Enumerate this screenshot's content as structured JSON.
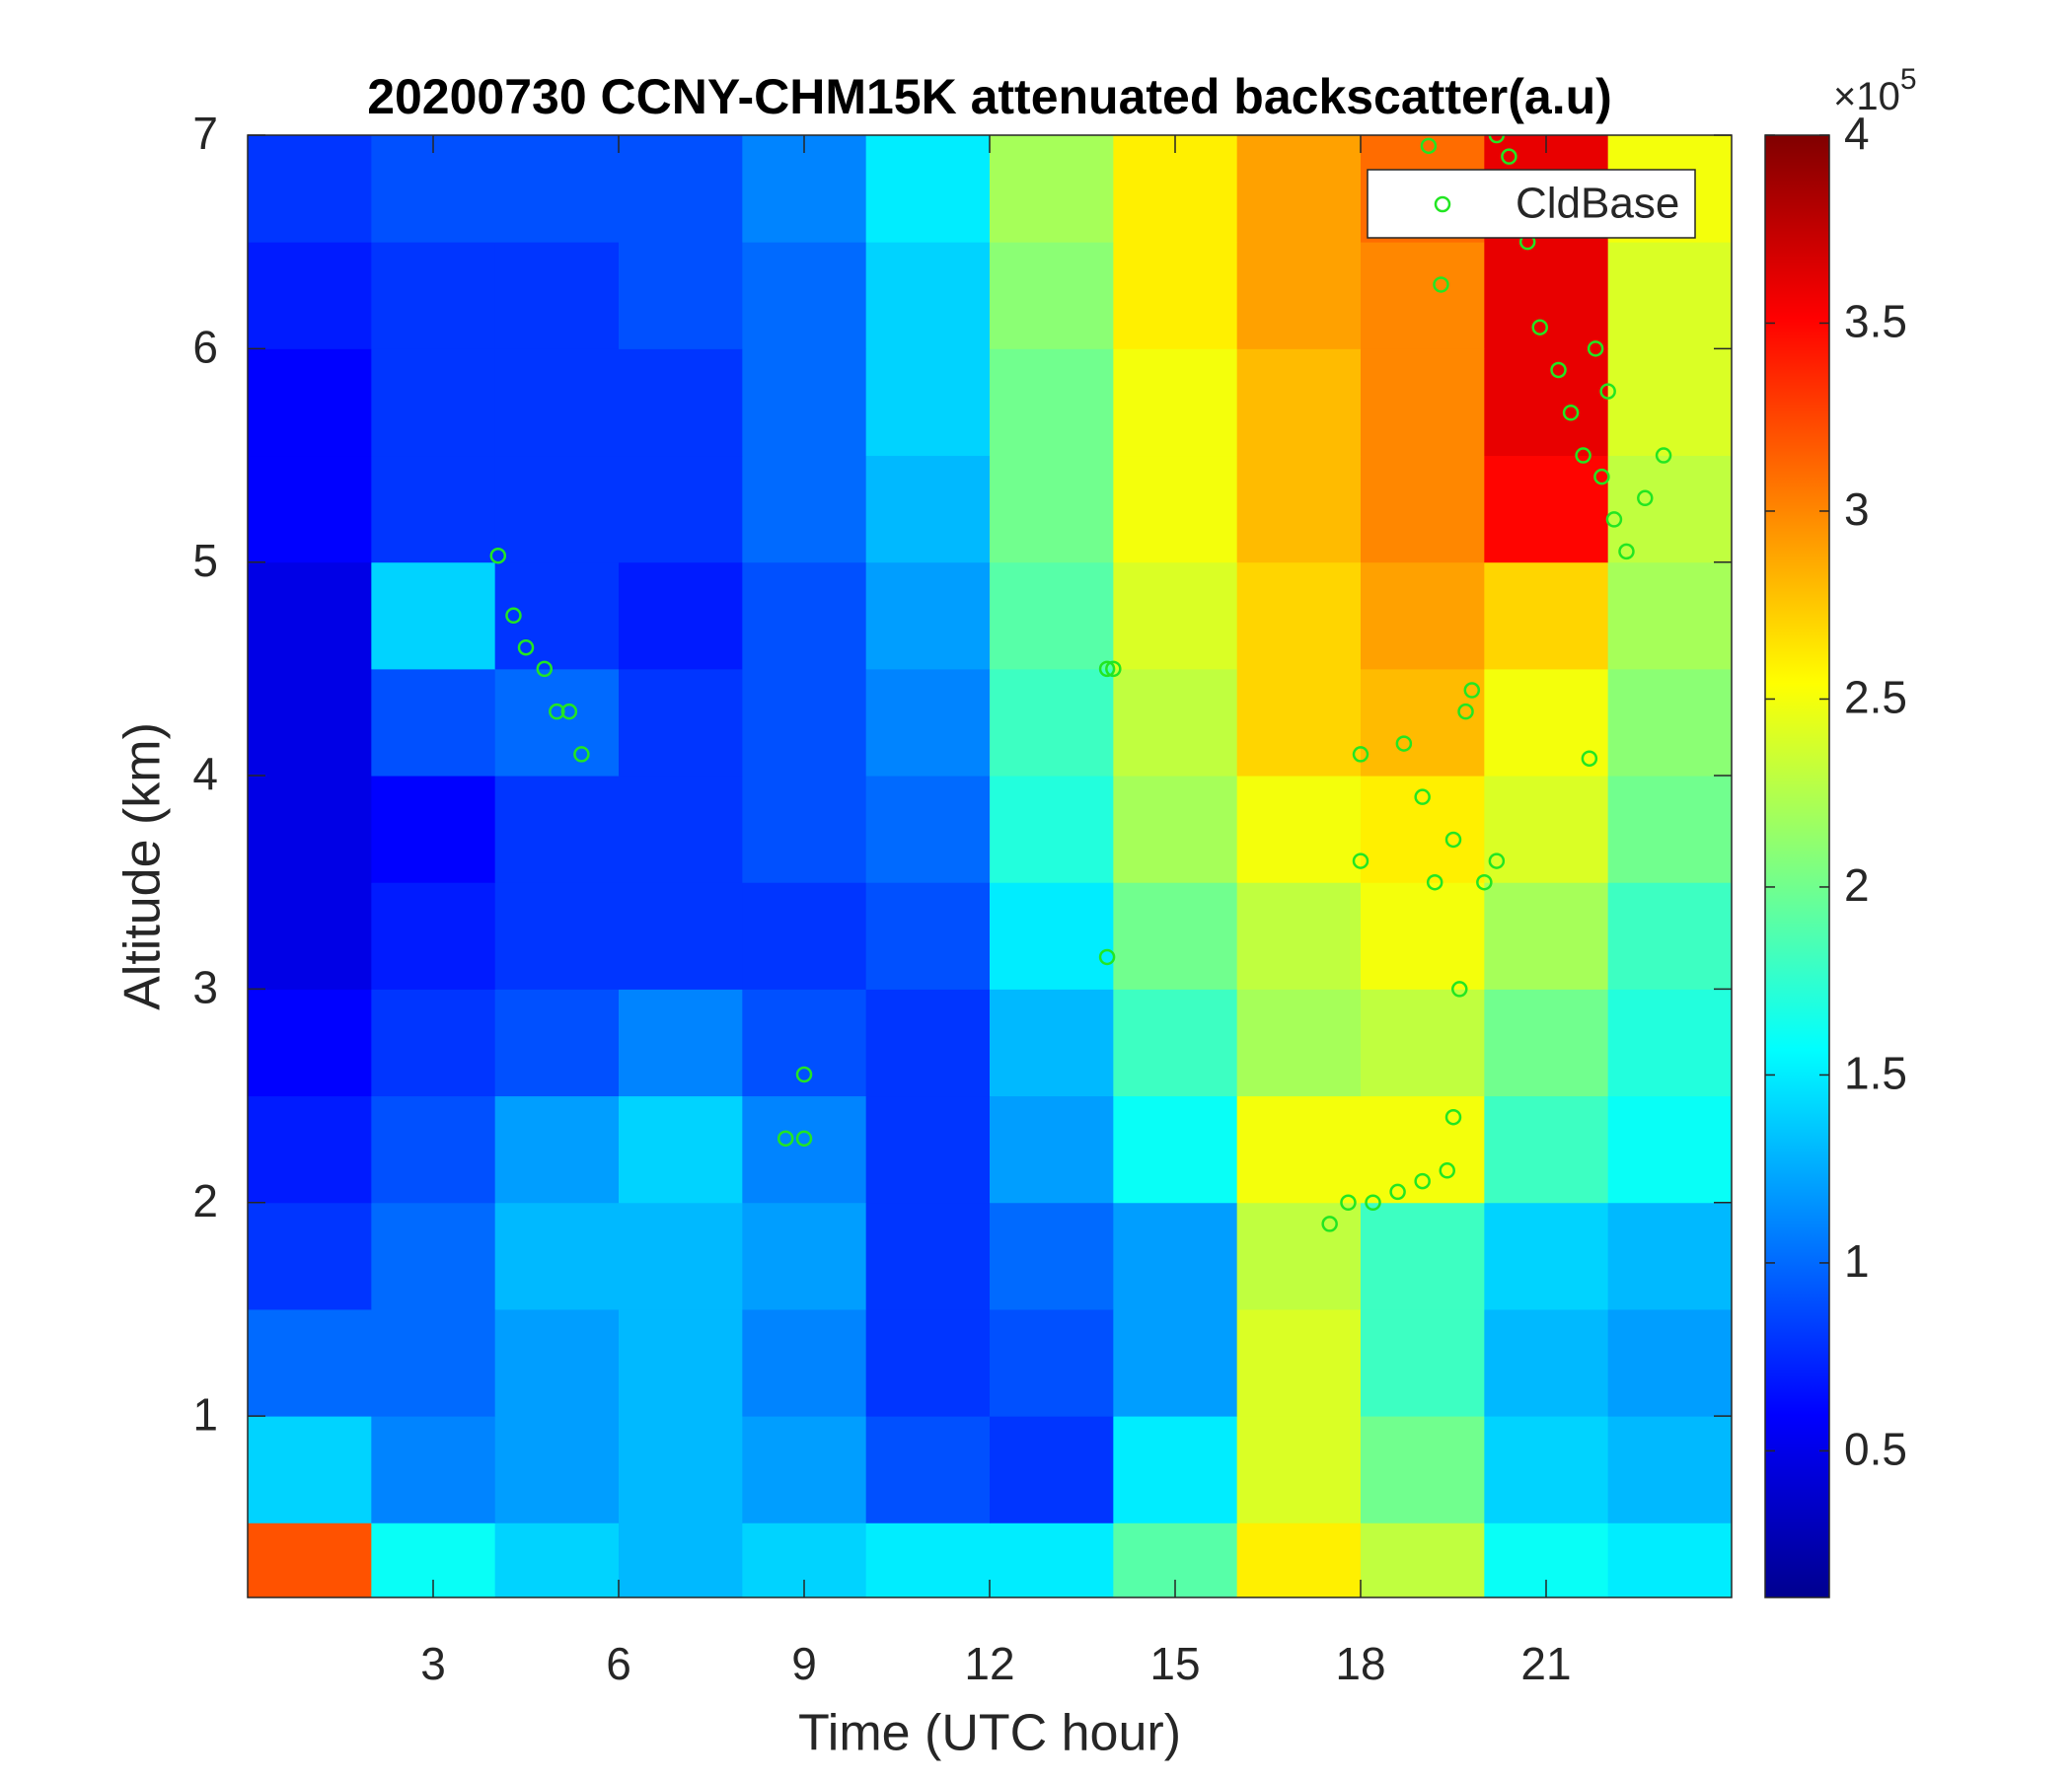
{
  "chart_data": {
    "type": "heatmap",
    "title": "20200730 CCNY-CHM15K attenuated backscatter(a.u)",
    "x_label": "Time (UTC hour)",
    "y_label": "Altitude (km)",
    "xlim": [
      0,
      24
    ],
    "ylim": [
      0.15,
      7
    ],
    "xticks": [
      3,
      6,
      9,
      12,
      15,
      18,
      21
    ],
    "yticks": [
      1,
      2,
      3,
      4,
      5,
      6,
      7
    ],
    "x": [
      1,
      3,
      5,
      7,
      9,
      11,
      13,
      15,
      17,
      19,
      21,
      23
    ],
    "y": [
      0.25,
      0.75,
      1.25,
      1.75,
      2.25,
      2.75,
      3.25,
      3.75,
      4.25,
      4.75,
      5.25,
      5.75,
      6.25,
      6.75
    ],
    "z": [
      [
        3.2,
        1.6,
        1.4,
        1.3,
        1.4,
        1.5,
        1.5,
        1.9,
        2.6,
        2.3,
        1.6,
        1.5
      ],
      [
        1.4,
        1.1,
        1.2,
        1.3,
        1.2,
        0.9,
        0.8,
        1.5,
        2.4,
        2.0,
        1.4,
        1.3
      ],
      [
        1.0,
        1.0,
        1.2,
        1.3,
        1.1,
        0.8,
        0.9,
        1.2,
        2.4,
        1.8,
        1.3,
        1.2
      ],
      [
        0.8,
        1.0,
        1.3,
        1.3,
        1.2,
        0.8,
        1.0,
        1.2,
        2.3,
        1.8,
        1.4,
        1.3
      ],
      [
        0.7,
        0.9,
        1.2,
        1.4,
        1.1,
        0.8,
        1.2,
        1.6,
        2.5,
        2.5,
        1.8,
        1.6
      ],
      [
        0.6,
        0.8,
        0.9,
        1.1,
        0.9,
        0.8,
        1.3,
        1.8,
        2.2,
        2.3,
        2.0,
        1.7
      ],
      [
        0.5,
        0.7,
        0.8,
        0.8,
        0.8,
        0.9,
        1.5,
        2.0,
        2.3,
        2.5,
        2.2,
        1.8
      ],
      [
        0.5,
        0.6,
        0.8,
        0.8,
        0.9,
        1.0,
        1.7,
        2.2,
        2.5,
        2.6,
        2.4,
        2.0
      ],
      [
        0.5,
        0.9,
        1.0,
        0.8,
        0.9,
        1.1,
        1.8,
        2.3,
        2.7,
        2.8,
        2.5,
        2.1
      ],
      [
        0.5,
        1.4,
        0.8,
        0.7,
        0.9,
        1.2,
        1.9,
        2.4,
        2.7,
        2.9,
        2.7,
        2.2
      ],
      [
        0.6,
        0.8,
        0.8,
        0.8,
        1.0,
        1.3,
        2.0,
        2.5,
        2.8,
        3.0,
        3.5,
        2.3
      ],
      [
        0.6,
        0.8,
        0.8,
        0.8,
        1.0,
        1.4,
        2.0,
        2.5,
        2.8,
        3.0,
        3.6,
        2.4
      ],
      [
        0.7,
        0.8,
        0.8,
        0.9,
        1.0,
        1.4,
        2.1,
        2.6,
        2.9,
        3.0,
        3.6,
        2.4
      ],
      [
        0.8,
        0.9,
        0.9,
        0.9,
        1.1,
        1.5,
        2.2,
        2.6,
        2.9,
        3.1,
        3.6,
        2.5
      ]
    ],
    "clim": [
      0.11,
      4
    ],
    "colorbar_ticks": [
      0.5,
      1,
      1.5,
      2,
      2.5,
      3,
      3.5,
      4
    ],
    "colorbar_multiplier": "×10",
    "colorbar_exponent": "5",
    "colormap": "jet",
    "legend_position": "upper right",
    "series": [
      {
        "name": "CldBase",
        "type": "scatter",
        "color": "#22e622",
        "x": [
          4.05,
          4.3,
          4.5,
          4.8,
          5.0,
          5.2,
          5.4,
          8.7,
          9.0,
          9.0,
          13.9,
          14.0,
          13.9,
          17.5,
          17.8,
          18.2,
          18.6,
          19.0,
          19.4,
          19.5,
          18.0,
          18.0,
          18.7,
          19.0,
          19.2,
          19.5,
          19.7,
          19.8,
          20.0,
          20.2,
          19.6,
          21.7,
          19.1,
          20.2,
          20.4,
          20.7,
          20.9,
          21.2,
          21.4,
          21.6,
          21.9,
          22.1,
          22.3,
          22.6,
          22.9,
          21.8,
          22.0,
          19.3
        ],
        "y": [
          5.03,
          4.75,
          4.6,
          4.5,
          4.3,
          4.3,
          4.1,
          2.3,
          2.3,
          2.6,
          4.5,
          4.5,
          3.15,
          1.9,
          2.0,
          2.0,
          2.05,
          2.1,
          2.15,
          2.4,
          3.6,
          4.1,
          4.15,
          3.9,
          3.5,
          3.7,
          4.3,
          4.4,
          3.5,
          3.6,
          3.0,
          4.08,
          6.95,
          7.0,
          6.9,
          6.5,
          6.1,
          5.9,
          5.7,
          5.5,
          5.4,
          5.2,
          5.05,
          5.3,
          5.5,
          6.0,
          5.8,
          6.3
        ]
      }
    ]
  }
}
